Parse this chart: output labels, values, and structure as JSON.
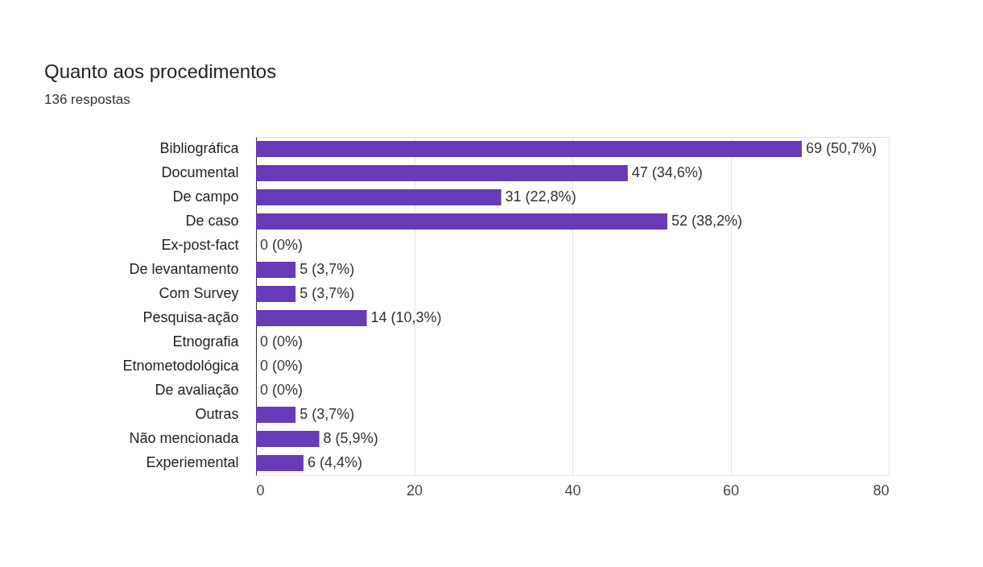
{
  "chart_data": {
    "type": "bar",
    "orientation": "horizontal",
    "title": "Quanto aos procedimentos",
    "subtitle": "136 respostas",
    "categories": [
      "Bibliográfica",
      "Documental",
      "De campo",
      "De caso",
      "Ex-post-fact",
      "De levantamento",
      "Com Survey",
      "Pesquisa-ação",
      "Etnografia",
      "Etnometodológica",
      "De avaliação",
      "Outras",
      "Não mencionada",
      "Experiemental"
    ],
    "values": [
      69,
      47,
      31,
      52,
      0,
      5,
      5,
      14,
      0,
      0,
      0,
      5,
      8,
      6
    ],
    "value_labels": [
      "69 (50,7%)",
      "47 (34,6%)",
      "31 (22,8%)",
      "52 (38,2%)",
      "0 (0%)",
      "5 (3,7%)",
      "5 (3,7%)",
      "14 (10,3%)",
      "0 (0%)",
      "0 (0%)",
      "0 (0%)",
      "5 (3,7%)",
      "8 (5,9%)",
      "6 (4,4%)"
    ],
    "color": "#673ab7",
    "xlim": [
      0,
      80
    ],
    "xticks": [
      0,
      20,
      40,
      60,
      80
    ],
    "grid": "x"
  }
}
